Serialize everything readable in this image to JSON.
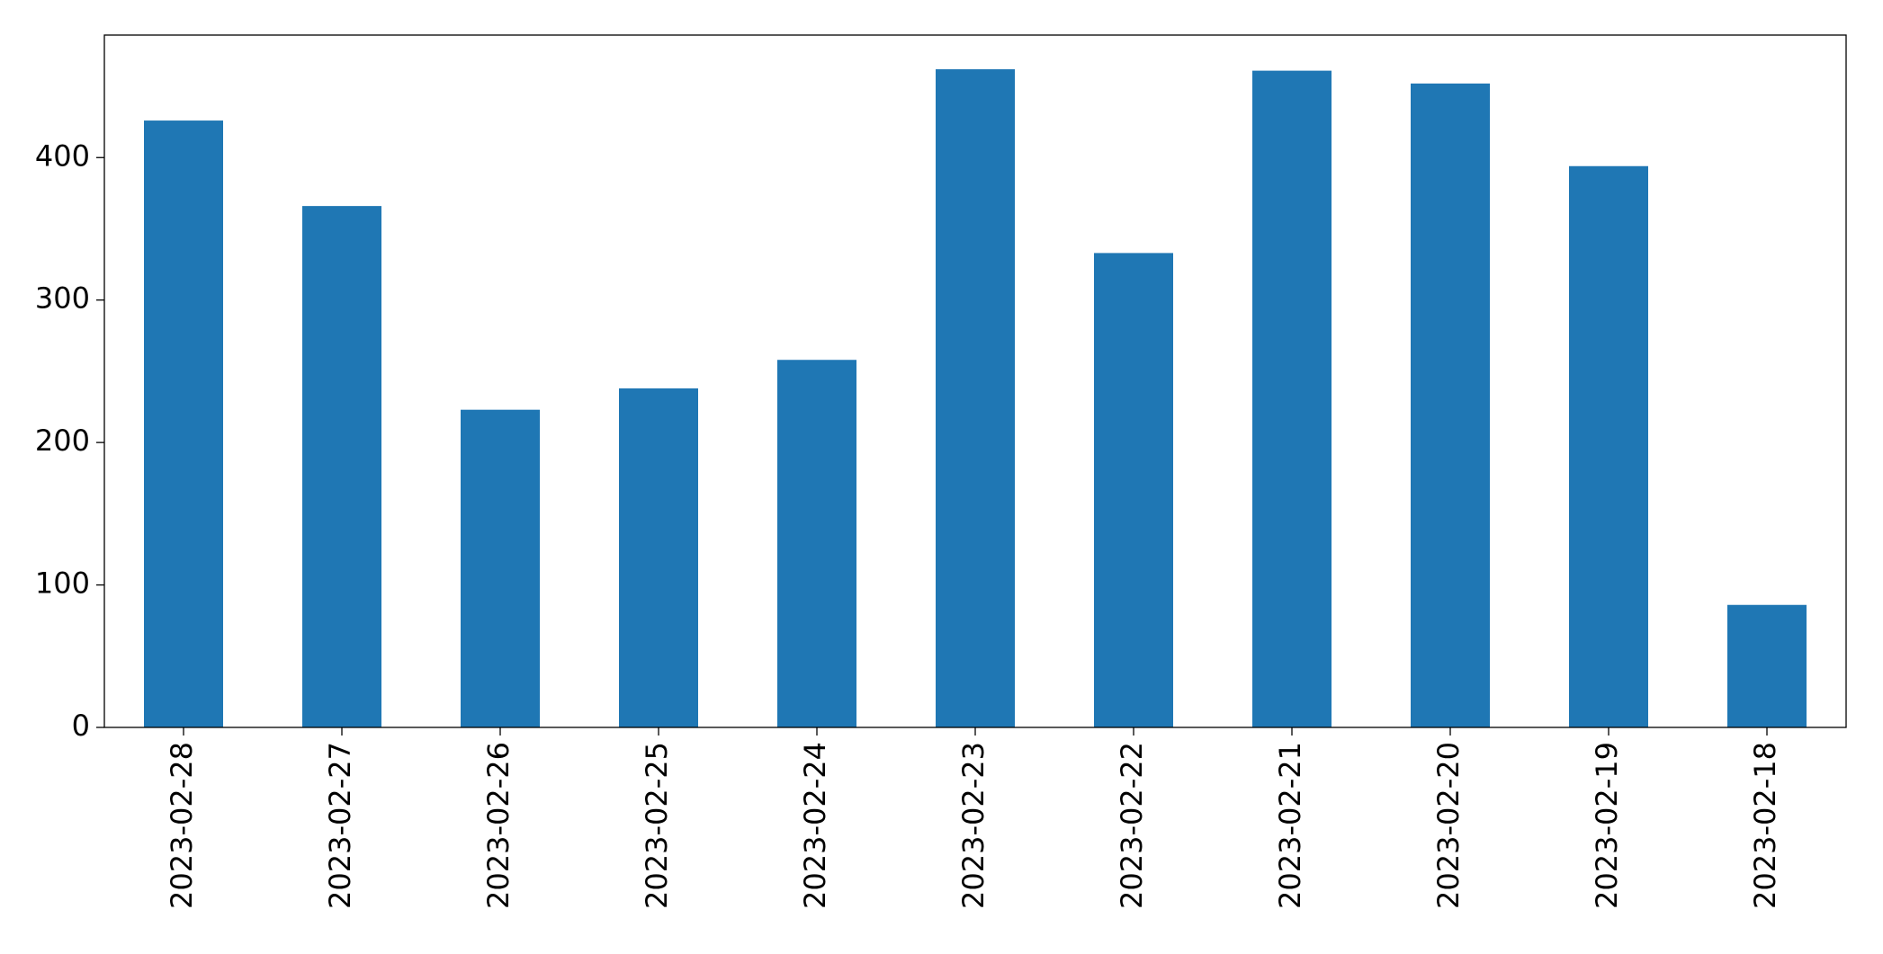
{
  "chart_data": {
    "type": "bar",
    "categories": [
      "2023-02-28",
      "2023-02-27",
      "2023-02-26",
      "2023-02-25",
      "2023-02-24",
      "2023-02-23",
      "2023-02-22",
      "2023-02-21",
      "2023-02-20",
      "2023-02-19",
      "2023-02-18"
    ],
    "values": [
      426,
      366,
      223,
      238,
      258,
      462,
      333,
      461,
      452,
      394,
      86
    ],
    "color": "#1f77b4",
    "ylim": [
      0,
      486
    ],
    "yticks": [
      0,
      100,
      200,
      300,
      400
    ],
    "grid": false
  }
}
